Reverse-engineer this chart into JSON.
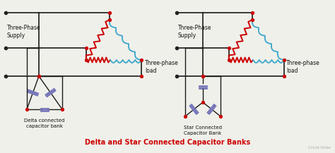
{
  "title": "Delta and Star Connected Capacitor Banks",
  "title_color": "#cc0000",
  "title_fontsize": 7.0,
  "bg_color": "#f0f0ea",
  "left_label": "Three-Phase\nSupply",
  "left_load_label": "Three-phase\nload",
  "left_cap_label": "Delta connected\ncapacitor bank",
  "right_label": "Three-Phase\nSupply",
  "right_load_label": "Three-phase\nload",
  "right_cap_label": "Star Connected\nCapacitor Bank",
  "watermark": "Circuit Globe",
  "node_color": "#cc0000",
  "wire_color": "#1a1a1a",
  "resistor_color": "#cc0000",
  "inductor_color": "#44aacc",
  "cap_color": "#7777bb",
  "dot_color": "#222222"
}
